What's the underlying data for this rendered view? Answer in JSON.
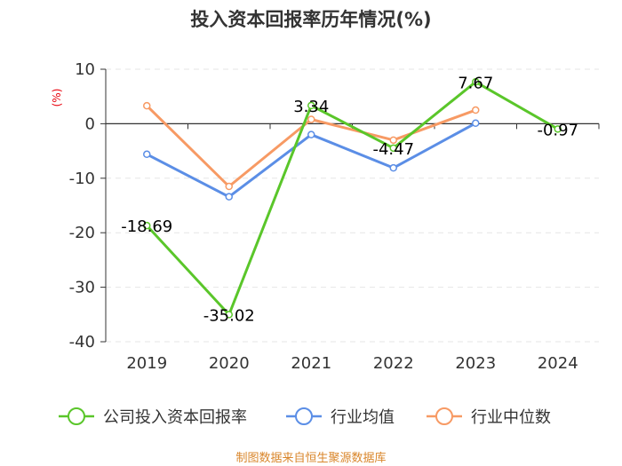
{
  "chart_data": {
    "type": "line",
    "title": "投入资本回报率历年情况(%)",
    "unit_label": "(%)",
    "categories": [
      "2019",
      "2020",
      "2021",
      "2022",
      "2023",
      "2024"
    ],
    "ylim": [
      -40,
      10
    ],
    "yticks": [
      10,
      0,
      -10,
      -20,
      -30,
      -40
    ],
    "grid": true,
    "legend_position": "bottom",
    "series": [
      {
        "name": "公司投入资本回报率",
        "color": "#5ac62a",
        "values": [
          -18.69,
          -35.02,
          3.34,
          -4.47,
          7.67,
          -0.97
        ],
        "labels": [
          "-18.69",
          "-35.02",
          "3.34",
          "-4.47",
          "7.67",
          "-0.97"
        ]
      },
      {
        "name": "行业均值",
        "color": "#5b8ee6",
        "values": [
          -5.6,
          -13.4,
          -2.0,
          -8.1,
          0.1,
          null
        ]
      },
      {
        "name": "行业中位数",
        "color": "#f79a64",
        "values": [
          3.3,
          -11.5,
          0.8,
          -3.0,
          2.5,
          null
        ]
      }
    ],
    "source": "制图数据来自恒生聚源数据库"
  }
}
